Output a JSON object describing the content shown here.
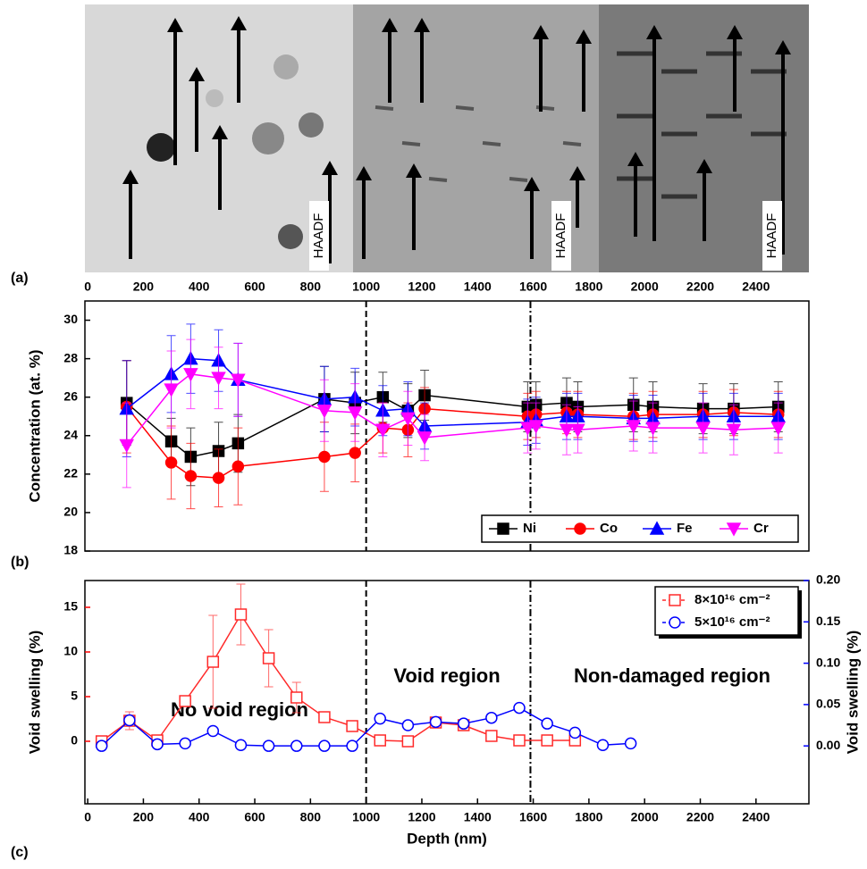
{
  "chart_data": [
    {
      "type": "image",
      "panel_label": "(a)",
      "labels": [
        "HAADF",
        "HAADF",
        "HAADF"
      ],
      "xlim": [
        -10,
        2590
      ],
      "xticks": [
        0,
        200,
        400,
        600,
        800,
        1000,
        1200,
        1400,
        1600,
        1800,
        2000,
        2200,
        2400
      ]
    },
    {
      "type": "line",
      "panel_label": "(b)",
      "ylabel": "Concentration (at. %)",
      "x": [
        140,
        300,
        370,
        470,
        540,
        850,
        960,
        1060,
        1150,
        1210,
        1580,
        1610,
        1720,
        1760,
        1960,
        2030,
        2210,
        2320,
        2480
      ],
      "xlim": [
        -10,
        2590
      ],
      "ylim": [
        18,
        31
      ],
      "yticks": [
        18,
        20,
        22,
        24,
        26,
        28,
        30
      ],
      "vlines": [
        {
          "value": 1000,
          "style": "dashed"
        },
        {
          "value": 1590,
          "style": "dashdot"
        }
      ],
      "legend": "lower right",
      "series": [
        {
          "name": "Ni",
          "color": "#000000",
          "marker": "square",
          "values": [
            25.7,
            23.7,
            22.9,
            23.2,
            23.6,
            25.9,
            25.7,
            26.0,
            25.3,
            26.1,
            25.5,
            25.6,
            25.7,
            25.5,
            25.6,
            25.5,
            25.4,
            25.4,
            25.5
          ],
          "errors": [
            2.2,
            1.2,
            1.5,
            1.5,
            1.5,
            1.7,
            1.6,
            1.3,
            1.4,
            1.3,
            1.3,
            1.2,
            1.3,
            1.3,
            1.4,
            1.3,
            1.3,
            1.3,
            1.3
          ]
        },
        {
          "name": "Co",
          "color": "#ff0000",
          "marker": "circle",
          "values": [
            25.5,
            22.6,
            21.9,
            21.8,
            22.4,
            22.9,
            23.1,
            24.4,
            24.3,
            25.4,
            25.0,
            25.1,
            25.2,
            25.1,
            25.0,
            25.1,
            25.1,
            25.2,
            25.1
          ],
          "errors": [
            2.4,
            1.9,
            1.7,
            1.5,
            2.0,
            1.8,
            1.5,
            1.3,
            1.4,
            1.1,
            1.2,
            1.2,
            1.1,
            1.2,
            1.2,
            1.2,
            1.2,
            1.2,
            1.2
          ]
        },
        {
          "name": "Fe",
          "color": "#0000ff",
          "marker": "triangle-up",
          "values": [
            25.4,
            27.2,
            28.0,
            27.9,
            26.9,
            25.9,
            26.0,
            25.3,
            25.4,
            24.5,
            24.7,
            24.8,
            25.0,
            25.0,
            24.9,
            24.9,
            25.0,
            25.0,
            25.0
          ],
          "errors": [
            2.5,
            2.0,
            1.8,
            1.6,
            1.9,
            1.7,
            1.5,
            1.3,
            1.4,
            1.2,
            1.2,
            1.2,
            1.2,
            1.2,
            1.2,
            1.2,
            1.2,
            1.2,
            1.2
          ]
        },
        {
          "name": "Cr",
          "color": "#ff00ff",
          "marker": "triangle-down",
          "values": [
            23.5,
            26.4,
            27.2,
            27.0,
            26.9,
            25.3,
            25.2,
            24.3,
            24.9,
            23.9,
            24.4,
            24.5,
            24.3,
            24.3,
            24.5,
            24.4,
            24.4,
            24.3,
            24.4
          ],
          "errors": [
            2.2,
            2.0,
            1.8,
            1.6,
            1.9,
            1.6,
            1.5,
            1.4,
            1.4,
            1.2,
            1.3,
            1.2,
            1.3,
            1.2,
            1.3,
            1.3,
            1.3,
            1.3,
            1.3
          ]
        }
      ]
    },
    {
      "type": "line",
      "panel_label": "(c)",
      "xlabel": "Depth (nm)",
      "ylabel": "Void swelling (%)",
      "y2label": "Void swelling (%)",
      "x": [
        50,
        150,
        250,
        350,
        450,
        550,
        650,
        750,
        850,
        950,
        1050,
        1150,
        1250,
        1350,
        1450,
        1550,
        1650,
        1750,
        1850,
        1950
      ],
      "xlim": [
        -10,
        2590
      ],
      "xticks": [
        0,
        200,
        400,
        600,
        800,
        1000,
        1200,
        1400,
        1600,
        1800,
        2000,
        2200,
        2400
      ],
      "ylim": [
        -7,
        18
      ],
      "yticks": [
        0,
        5,
        10,
        15
      ],
      "y2lim": [
        -0.07,
        0.2
      ],
      "y2ticks": [
        {
          "value": 0,
          "label": "0.00"
        },
        0.05,
        {
          "value": 0.1,
          "label": "0.10"
        },
        0.15,
        {
          "value": 0.2,
          "label": "0.20"
        }
      ],
      "ycolor": "#ff0000",
      "y2color": "#0000ff",
      "vlines": [
        {
          "value": 1000,
          "style": "dashed"
        },
        {
          "value": 1590,
          "style": "dashdot"
        }
      ],
      "annotations": [
        "No void region",
        "Void region",
        "Non-damaged region"
      ],
      "legend": "upper right",
      "series": [
        {
          "name": "8×10¹⁶ cm⁻²",
          "color": "#ff2a2a",
          "marker": "square",
          "axis": "y",
          "values": [
            0,
            2.3,
            0.1,
            4.5,
            8.9,
            14.2,
            9.3,
            4.9,
            2.7,
            1.7,
            0.1,
            0,
            2.1,
            1.8,
            0.6,
            0.1,
            0.1,
            0.1,
            null,
            null
          ],
          "errors": [
            0,
            1.0,
            0,
            0.3,
            5.2,
            3.4,
            3.2,
            1.7,
            0.6,
            0.3,
            0,
            0,
            0.3,
            0.3,
            0,
            0,
            0,
            0,
            null,
            null
          ]
        },
        {
          "name": "5×10¹⁶ cm⁻²",
          "color": "#0000ff",
          "marker": "circle",
          "axis": "y2",
          "values": [
            0,
            0.031,
            0.002,
            0.003,
            0.018,
            0.001,
            0,
            0,
            0,
            0,
            0.033,
            0.025,
            0.029,
            0.027,
            0.034,
            0.046,
            0.027,
            0.016,
            0.001,
            0.003
          ]
        }
      ]
    }
  ]
}
